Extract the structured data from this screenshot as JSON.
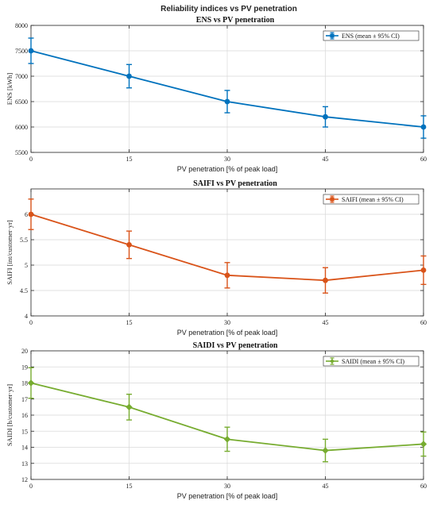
{
  "figure_title": "Reliability indices vs PV penetration",
  "chart_data": [
    {
      "type": "line",
      "title": "ENS vs PV penetration",
      "xlabel": "PV penetration [% of peak load]",
      "ylabel": "ENS [kWh]",
      "x": [
        0,
        15,
        30,
        45,
        60
      ],
      "xlim": [
        0,
        60
      ],
      "ylim": [
        5500,
        8000
      ],
      "xticks": [
        "0",
        "15",
        "30",
        "45",
        "60"
      ],
      "yticks": [
        "5500",
        "6000",
        "6500",
        "7000",
        "7500",
        "8000"
      ],
      "grid": true,
      "legend_position": "top-right",
      "color": "#0072BD",
      "series": [
        {
          "name": "ENS (mean ± 95% CI)",
          "values": [
            7500,
            7000,
            6500,
            6200,
            6000
          ],
          "ci": [
            250,
            230,
            220,
            200,
            220
          ],
          "marker": "circle"
        }
      ]
    },
    {
      "type": "line",
      "title": "SAIFI vs PV penetration",
      "xlabel": "PV penetration [% of peak load]",
      "ylabel": "SAIFI [int/customer·yr]",
      "x": [
        0,
        15,
        30,
        45,
        60
      ],
      "xlim": [
        0,
        60
      ],
      "ylim": [
        4,
        6.5
      ],
      "xticks": [
        "0",
        "15",
        "30",
        "45",
        "60"
      ],
      "yticks": [
        "4",
        "4.5",
        "5",
        "5.5",
        "6"
      ],
      "grid": true,
      "legend_position": "top-right",
      "color": "#D95319",
      "series": [
        {
          "name": "SAIFI (mean ± 95% CI)",
          "values": [
            6.0,
            5.4,
            4.8,
            4.7,
            4.9
          ],
          "ci": [
            0.3,
            0.27,
            0.25,
            0.25,
            0.28
          ],
          "marker": "circle"
        }
      ]
    },
    {
      "type": "line",
      "title": "SAIDI vs PV penetration",
      "xlabel": "PV penetration [% of peak load]",
      "ylabel": "SAIDI [h/customer·yr]",
      "x": [
        0,
        15,
        30,
        45,
        60
      ],
      "xlim": [
        0,
        60
      ],
      "ylim": [
        12,
        20
      ],
      "xticks": [
        "0",
        "15",
        "30",
        "45",
        "60"
      ],
      "yticks": [
        "12",
        "13",
        "14",
        "15",
        "16",
        "17",
        "18",
        "19",
        "20"
      ],
      "grid": true,
      "legend_position": "top-right",
      "color": "#77AC30",
      "series": [
        {
          "name": "SAIDI (mean ± 95% CI)",
          "values": [
            18.0,
            16.5,
            14.5,
            13.8,
            14.2
          ],
          "ci": [
            0.95,
            0.8,
            0.75,
            0.7,
            0.75
          ],
          "marker": "diamond"
        }
      ]
    }
  ]
}
